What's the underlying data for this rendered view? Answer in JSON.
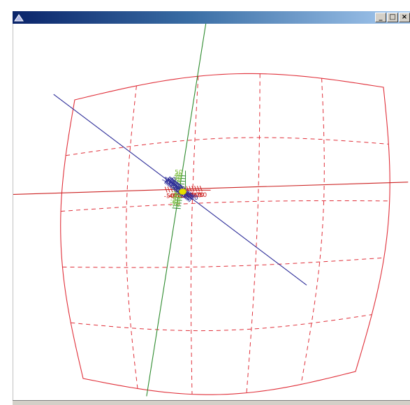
{
  "window": {
    "title": ""
  },
  "controls": {
    "minimize": "_",
    "maximize": "□",
    "close": "×"
  },
  "colors": {
    "x_axis": "#cc2222",
    "y_axis": "#2e8b2e",
    "y_label": "#7fbf3f",
    "z_axis": "#2d2d99",
    "surface": "#e0303a",
    "cursor": "#e8e000",
    "titlebar": "#0a246a"
  },
  "axes": {
    "x": {
      "labels": [
        "-50",
        "-40",
        "-30",
        "-20",
        "-10",
        "0",
        "10",
        "20",
        "30",
        "40",
        "50",
        "60",
        "70",
        "80"
      ]
    },
    "y": {
      "labels": [
        "50",
        "40",
        "30",
        "20",
        "10",
        "0",
        "-10",
        "-20",
        "-30",
        "-40",
        "-50",
        "-60",
        "-70"
      ]
    },
    "z": {
      "labels": [
        "-100",
        "-90",
        "-80",
        "-70",
        "-60",
        "-50",
        "-40",
        "-30",
        "-20",
        "-10",
        "0",
        "10",
        "20",
        "30",
        "40",
        "50",
        "60",
        "70",
        "80",
        "90",
        "100"
      ]
    }
  },
  "surface": {
    "style": "curved grid",
    "grid_lines": "dashed"
  }
}
